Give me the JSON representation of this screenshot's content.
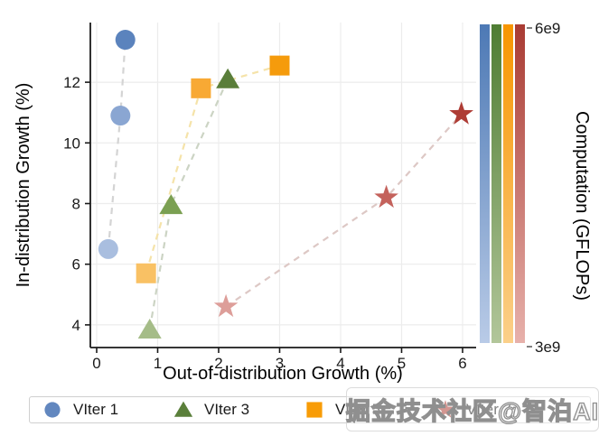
{
  "watermark": {
    "text": "掘金技术社区@智泊AI"
  },
  "chart_data": {
    "type": "scatter",
    "title": "",
    "xlabel": "Out-of-distribution Growth (%)",
    "ylabel": "In-distribution Growth (%)",
    "x_ticks": [
      0,
      1,
      2,
      3,
      4,
      5,
      6
    ],
    "y_ticks": [
      4,
      6,
      8,
      10,
      12
    ],
    "xlim": [
      -0.1,
      6.2
    ],
    "ylim": [
      3.25,
      14.05
    ],
    "grid": true,
    "colorbar": {
      "label": "Computation (GFLOPs)",
      "top_tick": "6e9",
      "bottom_tick": "3e9",
      "bars": [
        {
          "name": "viter1-bar",
          "top": "#4d79b5",
          "bottom": "#b9cbe7"
        },
        {
          "name": "viter3-bar",
          "top": "#4f7d33",
          "bottom": "#b2c69a"
        },
        {
          "name": "viter5-bar",
          "top": "#f79500",
          "bottom": "#fbd08a"
        },
        {
          "name": "viter7-bar",
          "top": "#a93b33",
          "bottom": "#e7b1ab"
        }
      ]
    },
    "series": [
      {
        "name": "VIter 1",
        "marker": "circle",
        "line_color": "#d4d4d4",
        "points": [
          {
            "x": 0.19,
            "y": 6.5,
            "color": "#a9bedf"
          },
          {
            "x": 0.39,
            "y": 10.9,
            "color": "#8aa6d2"
          },
          {
            "x": 0.47,
            "y": 13.4,
            "color": "#5b83bd"
          }
        ]
      },
      {
        "name": "VIter 3",
        "marker": "triangle",
        "line_color": "#ccd4c4",
        "points": [
          {
            "x": 0.87,
            "y": 3.85,
            "color": "#a5bc88"
          },
          {
            "x": 1.22,
            "y": 7.95,
            "color": "#7ba052"
          },
          {
            "x": 2.15,
            "y": 12.1,
            "color": "#5a7e3a"
          }
        ]
      },
      {
        "name": "VIter 5",
        "marker": "square",
        "line_color": "#f5e3a9",
        "points": [
          {
            "x": 0.81,
            "y": 5.7,
            "color": "#f9c164"
          },
          {
            "x": 1.71,
            "y": 11.8,
            "color": "#f8a934"
          },
          {
            "x": 3.0,
            "y": 12.55,
            "color": "#f59b0c"
          }
        ]
      },
      {
        "name": "VIter 7",
        "marker": "star",
        "line_color": "#ddc8c5",
        "points": [
          {
            "x": 2.12,
            "y": 4.6,
            "color": "#dd9e99"
          },
          {
            "x": 4.75,
            "y": 8.2,
            "color": "#c4625c"
          },
          {
            "x": 5.98,
            "y": 10.95,
            "color": "#ae3c35"
          }
        ]
      }
    ],
    "legend": {
      "position": "bottom",
      "items": [
        {
          "label": "VIter 1",
          "marker": "circle",
          "color": "#6287bf"
        },
        {
          "label": "VIter 3",
          "marker": "triangle",
          "color": "#5a7f3a"
        },
        {
          "label": "VIter 5",
          "marker": "square",
          "color": "#f89c07"
        },
        {
          "label": "VIter 7",
          "marker": "star",
          "color": "#b04138"
        }
      ]
    }
  }
}
